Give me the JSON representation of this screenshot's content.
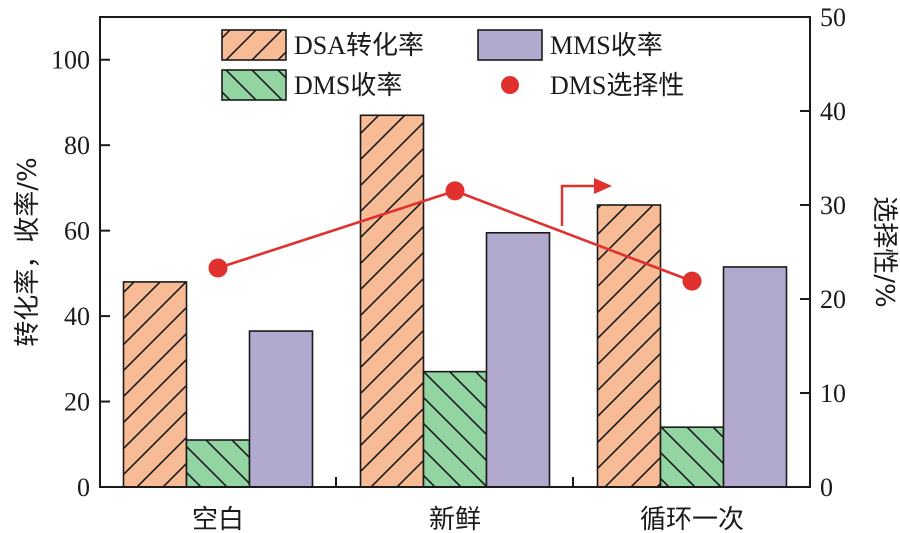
{
  "chart_data": {
    "type": "bar",
    "categories": [
      "空白",
      "新鲜",
      "循环一次"
    ],
    "series": [
      {
        "name": "DSA转化率",
        "axis": "left",
        "values": [
          48,
          87,
          66
        ],
        "color": "#F7BC95",
        "pattern": "hatch-forward"
      },
      {
        "name": "DMS收率",
        "axis": "left",
        "values": [
          11,
          27,
          14
        ],
        "color": "#93D4A3",
        "pattern": "hatch-back"
      },
      {
        "name": "MMS收率",
        "axis": "left",
        "values": [
          36.5,
          59.5,
          51.5
        ],
        "color": "#B2A9CE",
        "pattern": "none"
      },
      {
        "name": "DMS选择性",
        "axis": "right",
        "type": "line",
        "values": [
          23.3,
          31.5,
          21.9
        ],
        "color": "#E0312F"
      }
    ],
    "ylabel": "转化率，收率/%",
    "y2label": "选择性/%",
    "ylim": [
      0,
      110
    ],
    "y2lim": [
      0,
      50
    ],
    "yticks": [
      0,
      20,
      40,
      60,
      80,
      100
    ],
    "y2ticks": [
      0,
      10,
      20,
      30,
      40,
      50
    ],
    "legend_position": "top",
    "grid": false
  }
}
